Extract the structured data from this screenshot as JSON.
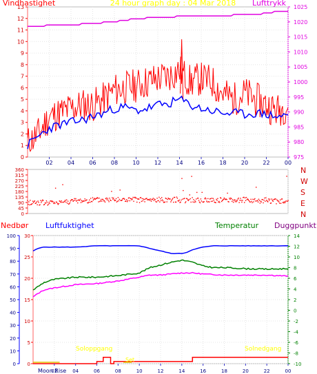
{
  "header": {
    "wind_label": "Vindhastighet",
    "title": "24 hour graph day : 04 Mar 2018",
    "pressure_label": "Lufttrykk"
  },
  "lower_header": {
    "precip_label": "Nedbør",
    "humidity_label": "Luftfuktighet",
    "temperature_label": "Temperatur",
    "dewpoint_label": "Duggpunkt"
  },
  "annotations": {
    "sunrise_label": "Soloppgang",
    "sunset_label": "Solnedgang",
    "moonrise_label": "Moon Rise",
    "moonset_label": "Set"
  },
  "colors": {
    "wind": "#ff0000",
    "wind_avg": "#0000ff",
    "pressure": "#e000e0",
    "temperature": "#008000",
    "dewpoint": "#ff00ff",
    "humidity": "#0000ff",
    "precip": "#ff0000",
    "sun_label": "#ffff00"
  },
  "chart_data": [
    {
      "type": "line",
      "x_tick_labels": [
        "02",
        "04",
        "06",
        "08",
        "10",
        "12",
        "14",
        "16",
        "18",
        "20",
        "22",
        "00"
      ],
      "ylim_left": [
        0,
        13
      ],
      "left_tick_labels": [
        "0",
        "1",
        "2",
        "3",
        "4",
        "5",
        "6",
        "7",
        "8",
        "9",
        "10",
        "11",
        "12",
        "13"
      ],
      "ylim_right": [
        975,
        1025
      ],
      "right_tick_labels": [
        "975",
        "980",
        "985",
        "990",
        "995",
        "1000",
        "1005",
        "1010",
        "1015",
        "1020",
        "1025"
      ],
      "series": [
        {
          "name": "Vindhastighet",
          "axis": "left",
          "x": [
            0,
            1,
            2,
            3,
            4,
            5,
            6,
            7,
            8,
            9,
            10,
            11,
            12,
            13,
            14,
            15,
            16,
            17,
            18,
            19,
            20,
            21,
            22,
            23,
            24
          ],
          "values": [
            1.2,
            2.0,
            3.5,
            3.8,
            4.2,
            4.5,
            4.5,
            5.0,
            5.8,
            6.0,
            6.2,
            6.5,
            6.8,
            7.0,
            7.5,
            6.5,
            6.8,
            6.5,
            5.5,
            5.0,
            5.5,
            5.0,
            4.5,
            4.0,
            4.5
          ]
        },
        {
          "name": "Gust peak",
          "axis": "left",
          "x": [
            14.2
          ],
          "values": [
            10.2
          ]
        },
        {
          "name": "Average",
          "axis": "left",
          "x": [
            0,
            1,
            2,
            3,
            4,
            5,
            6,
            7,
            8,
            9,
            10,
            11,
            12,
            13,
            14,
            15,
            16,
            17,
            18,
            19,
            20,
            21,
            22,
            23,
            24
          ],
          "values": [
            1.0,
            1.8,
            2.5,
            2.8,
            3.0,
            3.2,
            3.5,
            3.8,
            4.2,
            4.3,
            4.0,
            4.2,
            4.5,
            4.6,
            5.0,
            4.5,
            4.2,
            4.0,
            3.8,
            3.8,
            3.7,
            3.8,
            3.7,
            3.5,
            3.6
          ]
        },
        {
          "name": "Lufttrykk",
          "axis": "right",
          "x": [
            0,
            2,
            4,
            6,
            8,
            9,
            10,
            12,
            14,
            16,
            18,
            20,
            22,
            23,
            24
          ],
          "values": [
            1018.5,
            1018.8,
            1019.0,
            1019.5,
            1020.0,
            1020.5,
            1021.0,
            1021.5,
            1021.8,
            1022.0,
            1022.0,
            1022.5,
            1022.8,
            1023.5,
            1023.5
          ]
        }
      ]
    },
    {
      "type": "scatter",
      "x_tick_labels": [],
      "ylim": [
        0,
        360
      ],
      "left_tick_labels": [
        "0",
        "45",
        "90",
        "135",
        "180",
        "225",
        "270",
        "315",
        "360"
      ],
      "right_tick_labels": [
        "N",
        "W",
        "S",
        "E",
        "N"
      ],
      "series": [
        {
          "name": "Vindretning",
          "x": [
            0,
            1,
            2,
            3,
            4,
            5,
            6,
            7,
            8,
            9,
            10,
            11,
            12,
            13,
            14,
            15,
            16,
            17,
            18,
            19,
            20,
            21,
            22,
            23,
            24
          ],
          "values": [
            90,
            90,
            85,
            95,
            100,
            105,
            110,
            110,
            115,
            110,
            112,
            108,
            110,
            115,
            112,
            108,
            105,
            110,
            108,
            112,
            110,
            105,
            108,
            100,
            95
          ]
        }
      ]
    },
    {
      "type": "line",
      "x_tick_labels": [
        "02",
        "04",
        "06",
        "08",
        "10",
        "12",
        "14",
        "16",
        "18",
        "20",
        "22",
        "00"
      ],
      "ylim_left": [
        0,
        100
      ],
      "left_tick_labels": [
        "0",
        "10",
        "20",
        "30",
        "40",
        "50",
        "60",
        "70",
        "80",
        "90",
        "100"
      ],
      "precip_ylim": [
        0,
        30
      ],
      "precip_tick_labels": [
        "0",
        "5",
        "10",
        "15",
        "20",
        "25",
        "30"
      ],
      "ylim_right": [
        -10,
        14
      ],
      "right_tick_labels": [
        "-10",
        "-8",
        "-6",
        "-4",
        "-2",
        "0",
        "2",
        "4",
        "6",
        "8",
        "10",
        "12",
        "14"
      ],
      "series": [
        {
          "name": "Luftfuktighet",
          "axis": "left",
          "x": [
            0,
            0.5,
            1,
            2,
            3,
            4,
            6,
            8,
            10,
            10.5,
            11,
            12,
            13,
            14,
            14.5,
            15,
            16,
            17,
            18,
            20,
            22,
            24
          ],
          "values": [
            88,
            90,
            91,
            91,
            91,
            91,
            92,
            92,
            92,
            91,
            90,
            88,
            86,
            86,
            87,
            89,
            91,
            92,
            92,
            92,
            92,
            92
          ]
        },
        {
          "name": "Temperatur",
          "axis": "right",
          "x": [
            0,
            0.5,
            1,
            2,
            3,
            4,
            6,
            8,
            10,
            11,
            12,
            13,
            14,
            15,
            16,
            17,
            18,
            20,
            22,
            24
          ],
          "values": [
            3.8,
            4.5,
            5.2,
            5.8,
            6.0,
            6.2,
            6.2,
            6.5,
            7.0,
            8.0,
            8.5,
            9.0,
            9.4,
            9.0,
            8.3,
            8.0,
            8.0,
            7.8,
            7.7,
            7.8
          ]
        },
        {
          "name": "Duggpunkt",
          "axis": "right",
          "x": [
            0,
            0.5,
            1,
            2,
            3,
            4,
            6,
            8,
            10,
            11,
            12,
            13,
            14,
            15,
            16,
            17,
            18,
            20,
            22,
            24
          ],
          "values": [
            2.5,
            3.2,
            3.8,
            4.2,
            4.5,
            4.8,
            5.0,
            5.5,
            6.2,
            6.6,
            6.6,
            6.8,
            7.0,
            7.0,
            6.8,
            6.7,
            6.6,
            6.6,
            6.6,
            6.4
          ]
        },
        {
          "name": "Nedbør",
          "axis": "precip",
          "x": [
            0,
            5.5,
            6,
            6.5,
            6.6,
            7,
            7.3,
            7.6,
            8.5,
            14.5,
            15,
            24
          ],
          "values": [
            0,
            0,
            0.5,
            0.5,
            1.5,
            1.5,
            0,
            0.5,
            0.5,
            0.5,
            1.5,
            1.5
          ]
        }
      ]
    }
  ]
}
